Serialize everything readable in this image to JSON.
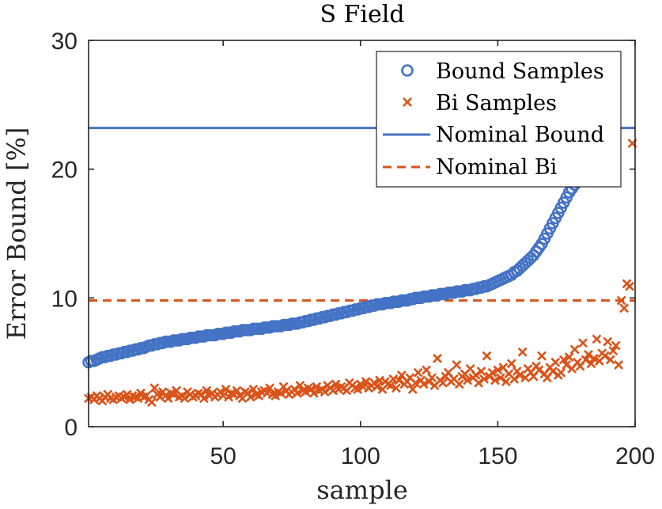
{
  "chart_data": {
    "type": "scatter",
    "title": "S Field",
    "xlabel": "sample",
    "ylabel": "Error Bound [%]",
    "xlim": [
      1,
      200
    ],
    "ylim": [
      0,
      30
    ],
    "xticks": [
      50,
      100,
      150,
      200
    ],
    "yticks": [
      0,
      10,
      20,
      30
    ],
    "grid": false,
    "legend_position": "top-right",
    "legend": [
      "Bound Samples",
      "Bi Samples",
      "Nominal Bound",
      "Nominal Bi"
    ],
    "colors": {
      "bound": "#4472c4",
      "bi": "#d95319",
      "axis": "#262626"
    },
    "bound_samples": [
      5.0,
      5.1,
      5.1,
      5.2,
      5.3,
      5.4,
      5.4,
      5.5,
      5.5,
      5.6,
      5.6,
      5.7,
      5.7,
      5.8,
      5.8,
      5.9,
      5.9,
      6.0,
      6.0,
      6.1,
      6.1,
      6.2,
      6.3,
      6.3,
      6.4,
      6.4,
      6.5,
      6.5,
      6.6,
      6.6,
      6.6,
      6.7,
      6.7,
      6.7,
      6.8,
      6.8,
      6.8,
      6.9,
      6.9,
      6.9,
      7.0,
      7.0,
      7.0,
      7.1,
      7.1,
      7.1,
      7.1,
      7.2,
      7.2,
      7.2,
      7.3,
      7.3,
      7.3,
      7.4,
      7.4,
      7.4,
      7.5,
      7.5,
      7.5,
      7.5,
      7.6,
      7.6,
      7.6,
      7.6,
      7.7,
      7.7,
      7.7,
      7.8,
      7.8,
      7.8,
      7.8,
      7.9,
      7.9,
      7.9,
      8.0,
      8.0,
      8.0,
      8.1,
      8.1,
      8.2,
      8.2,
      8.3,
      8.3,
      8.4,
      8.4,
      8.5,
      8.5,
      8.6,
      8.6,
      8.7,
      8.7,
      8.8,
      8.8,
      8.9,
      8.9,
      9.0,
      9.0,
      9.1,
      9.1,
      9.2,
      9.2,
      9.3,
      9.3,
      9.4,
      9.4,
      9.5,
      9.5,
      9.5,
      9.6,
      9.6,
      9.6,
      9.7,
      9.7,
      9.7,
      9.8,
      9.8,
      9.8,
      9.9,
      9.9,
      10.0,
      10.0,
      10.0,
      10.1,
      10.1,
      10.1,
      10.2,
      10.2,
      10.2,
      10.3,
      10.3,
      10.3,
      10.4,
      10.4,
      10.4,
      10.5,
      10.5,
      10.5,
      10.6,
      10.6,
      10.6,
      10.7,
      10.7,
      10.8,
      10.8,
      10.9,
      10.9,
      11.0,
      11.1,
      11.2,
      11.3,
      11.4,
      11.5,
      11.6,
      11.7,
      11.8,
      12.0,
      12.1,
      12.3,
      12.5,
      12.7,
      12.9,
      13.1,
      13.3,
      13.6,
      13.9,
      14.2,
      14.6,
      15.0,
      15.4,
      15.8,
      16.2,
      16.6,
      17.0,
      17.4,
      17.8,
      18.2,
      18.5,
      18.8,
      19.0,
      19.2,
      19.5,
      19.8,
      20.2,
      20.6,
      21.0,
      21.5,
      22.0,
      22.5,
      23.0,
      23.5,
      27.0,
      28.3
    ],
    "bi_samples": [
      2.2,
      2.3,
      2.1,
      2.4,
      2.2,
      2.0,
      2.3,
      2.5,
      2.2,
      2.1,
      2.3,
      2.4,
      2.2,
      2.3,
      2.5,
      2.1,
      2.4,
      2.3,
      2.2,
      2.6,
      2.3,
      2.4,
      2.1,
      1.9,
      3.0,
      2.5,
      2.3,
      2.7,
      2.4,
      2.2,
      2.6,
      2.5,
      2.8,
      2.3,
      2.4,
      2.2,
      2.7,
      2.5,
      2.3,
      2.4,
      2.6,
      2.5,
      2.2,
      2.8,
      2.4,
      2.6,
      2.3,
      2.5,
      2.7,
      2.4,
      2.9,
      2.3,
      2.6,
      2.5,
      2.8,
      2.4,
      2.2,
      2.7,
      2.6,
      2.3,
      2.9,
      2.5,
      2.4,
      2.7,
      2.8,
      2.6,
      3.0,
      2.5,
      2.4,
      2.7,
      2.6,
      3.1,
      2.8,
      2.5,
      2.7,
      2.9,
      2.6,
      3.2,
      2.8,
      2.7,
      3.0,
      2.9,
      2.6,
      3.1,
      2.8,
      2.9,
      2.7,
      3.2,
      3.0,
      2.8,
      3.3,
      2.9,
      3.1,
      3.0,
      2.8,
      3.4,
      3.2,
      3.0,
      2.9,
      3.3,
      3.1,
      3.5,
      3.0,
      3.2,
      3.4,
      3.1,
      3.6,
      2.9,
      3.5,
      3.3,
      3.2,
      3.7,
      3.0,
      3.6,
      4.0,
      3.3,
      3.5,
      3.8,
      2.9,
      3.4,
      4.2,
      3.6,
      3.3,
      4.4,
      3.5,
      3.8,
      3.2,
      5.3,
      3.6,
      3.4,
      3.9,
      4.2,
      3.5,
      3.7,
      4.8,
      3.3,
      3.9,
      4.1,
      3.6,
      4.5,
      3.8,
      4.0,
      3.4,
      4.3,
      3.7,
      5.5,
      3.9,
      4.2,
      3.6,
      4.4,
      3.8,
      4.6,
      3.5,
      4.1,
      4.9,
      3.7,
      4.3,
      4.0,
      5.8,
      3.8,
      4.5,
      4.2,
      3.9,
      4.7,
      4.4,
      5.5,
      4.1,
      3.8,
      4.6,
      4.3,
      5.0,
      4.0,
      4.2,
      5.2,
      4.8,
      5.4,
      4.5,
      6.0,
      5.0,
      4.7,
      6.5,
      5.2,
      5.6,
      4.9,
      5.3,
      6.8,
      5.1,
      5.7,
      5.5,
      6.6,
      5.2,
      5.9,
      6.3,
      4.8,
      9.8,
      9.2,
      11.1,
      10.9,
      22.0
    ],
    "nominal_bound": 23.2,
    "nominal_bi": 9.8
  }
}
